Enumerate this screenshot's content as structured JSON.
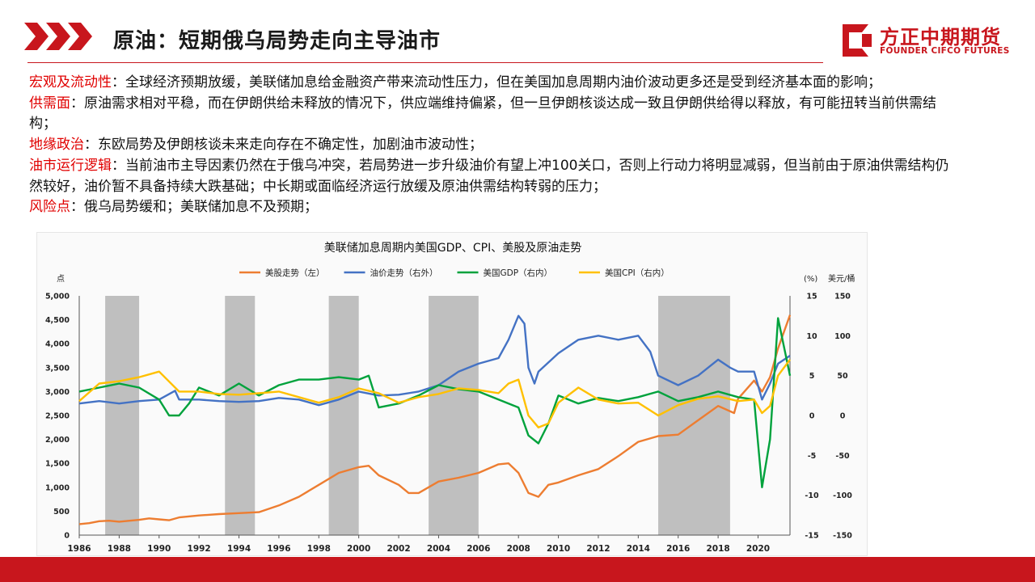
{
  "header": {
    "title": "原油：短期俄乌局势走向主导油市",
    "logo_name": "方正中期期货",
    "logo_en": "FOUNDER CIFCO FUTURES",
    "accent_color": "#c8161d"
  },
  "paragraphs": [
    {
      "key": "宏观及流动性",
      "text": "：全球经济预期放缓，美联储加息给金融资产带来流动性压力，但在美国加息周期内油价波动更多还是受到经济基本面的影响；"
    },
    {
      "key": "供需面",
      "text": "：原油需求相对平稳，而在伊朗供给未释放的情况下，供应端维持偏紧，但一旦伊朗核谈达成一致且伊朗供给得以释放，有可能扭转当前供需结构；"
    },
    {
      "key": "地缘政治",
      "text": "：东欧局势及伊朗核谈未来走向存在不确定性，加剧油市波动性；"
    },
    {
      "key": "油市运行逻辑",
      "text": "：当前油市主导因素仍然在于俄乌冲突，若局势进一步升级油价有望上冲100关口，否则上行动力将明显减弱，但当前由于原油供需结构仍然较好，油价暂不具备持续大跌基础；中长期或面临经济运行放缓及原油供需结构转弱的压力；"
    },
    {
      "key": "风险点",
      "text": "：俄乌局势缓和；美联储加息不及预期；"
    }
  ],
  "chart_data": {
    "type": "line",
    "title": "美联储加息周期内美国GDP、CPI、美股及原油走势",
    "left_unit": "点",
    "right_inner_unit": "(%)",
    "right_outer_unit": "美元/桶",
    "x_ticks": [
      "1986",
      "1988",
      "1990",
      "1992",
      "1994",
      "1996",
      "1998",
      "2000",
      "2002",
      "2004",
      "2006",
      "2008",
      "2010",
      "2012",
      "2014",
      "2016",
      "2018",
      "2020"
    ],
    "x_range": [
      1986,
      2021.6
    ],
    "y_left": {
      "range": [
        0,
        5000
      ],
      "ticks": [
        "0",
        "500",
        "1,000",
        "1,500",
        "2,000",
        "2,500",
        "3,000",
        "3,500",
        "4,000",
        "4,500",
        "5,000"
      ]
    },
    "y_right_inner": {
      "range": [
        -15,
        15
      ],
      "ticks": [
        "-15",
        "-10",
        "-5",
        "0",
        "5",
        "10",
        "15"
      ]
    },
    "y_right_outer": {
      "range": [
        -150,
        150
      ],
      "ticks": [
        "-150",
        "-100",
        "-50",
        "0",
        "50",
        "100",
        "150"
      ]
    },
    "shaded_periods": [
      [
        1987.3,
        1989.0
      ],
      [
        1993.3,
        1994.8
      ],
      [
        1998.5,
        2000.0
      ],
      [
        2003.5,
        2006.0
      ],
      [
        2015.0,
        2018.6
      ]
    ],
    "series": [
      {
        "name": "美股走势（左）",
        "color": "#ed7d31",
        "axis": "left",
        "points": [
          [
            1986,
            230
          ],
          [
            1986.5,
            250
          ],
          [
            1987,
            290
          ],
          [
            1987.5,
            300
          ],
          [
            1988,
            280
          ],
          [
            1989,
            320
          ],
          [
            1989.5,
            350
          ],
          [
            1990,
            330
          ],
          [
            1990.5,
            310
          ],
          [
            1991,
            370
          ],
          [
            1992,
            410
          ],
          [
            1993,
            440
          ],
          [
            1994,
            460
          ],
          [
            1995,
            480
          ],
          [
            1996,
            620
          ],
          [
            1997,
            800
          ],
          [
            1998,
            1050
          ],
          [
            1999,
            1300
          ],
          [
            2000,
            1420
          ],
          [
            2000.5,
            1450
          ],
          [
            2001,
            1250
          ],
          [
            2002,
            1050
          ],
          [
            2002.5,
            880
          ],
          [
            2003,
            880
          ],
          [
            2004,
            1120
          ],
          [
            2005,
            1200
          ],
          [
            2006,
            1300
          ],
          [
            2007,
            1480
          ],
          [
            2007.5,
            1500
          ],
          [
            2008,
            1300
          ],
          [
            2008.5,
            880
          ],
          [
            2009,
            800
          ],
          [
            2009.5,
            1050
          ],
          [
            2010,
            1100
          ],
          [
            2011,
            1250
          ],
          [
            2012,
            1380
          ],
          [
            2013,
            1650
          ],
          [
            2014,
            1950
          ],
          [
            2015,
            2070
          ],
          [
            2016,
            2100
          ],
          [
            2017,
            2400
          ],
          [
            2018,
            2700
          ],
          [
            2018.8,
            2550
          ],
          [
            2019,
            2850
          ],
          [
            2019.8,
            3230
          ],
          [
            2020.2,
            3000
          ],
          [
            2020.6,
            3300
          ],
          [
            2021,
            3900
          ],
          [
            2021.6,
            4600
          ]
        ]
      },
      {
        "name": "油价走势（右外）",
        "color": "#4472c4",
        "axis": "right_outer",
        "points": [
          [
            1986,
            15
          ],
          [
            1987,
            18
          ],
          [
            1988,
            15
          ],
          [
            1989,
            18
          ],
          [
            1990,
            20
          ],
          [
            1990.8,
            31
          ],
          [
            1991,
            20
          ],
          [
            1992,
            20
          ],
          [
            1993,
            18
          ],
          [
            1994,
            17
          ],
          [
            1995,
            18
          ],
          [
            1996,
            22
          ],
          [
            1997,
            20
          ],
          [
            1998,
            13
          ],
          [
            1999,
            20
          ],
          [
            2000,
            30
          ],
          [
            2001,
            25
          ],
          [
            2002,
            26
          ],
          [
            2003,
            30
          ],
          [
            2004,
            38
          ],
          [
            2005,
            55
          ],
          [
            2006,
            65
          ],
          [
            2007,
            72
          ],
          [
            2007.5,
            95
          ],
          [
            2008,
            125
          ],
          [
            2008.3,
            115
          ],
          [
            2008.5,
            60
          ],
          [
            2008.8,
            40
          ],
          [
            2009,
            55
          ],
          [
            2010,
            78
          ],
          [
            2011,
            95
          ],
          [
            2012,
            100
          ],
          [
            2013,
            95
          ],
          [
            2014,
            100
          ],
          [
            2014.6,
            80
          ],
          [
            2015,
            50
          ],
          [
            2016,
            38
          ],
          [
            2017,
            50
          ],
          [
            2018,
            70
          ],
          [
            2018.6,
            60
          ],
          [
            2019,
            55
          ],
          [
            2019.8,
            55
          ],
          [
            2020.2,
            20
          ],
          [
            2020.6,
            40
          ],
          [
            2021,
            65
          ],
          [
            2021.6,
            75
          ]
        ]
      },
      {
        "name": "美国GDP（右内）",
        "color": "#00a23c",
        "axis": "right_inner",
        "points": [
          [
            1986,
            3
          ],
          [
            1987,
            3.5
          ],
          [
            1988,
            4
          ],
          [
            1989,
            3.5
          ],
          [
            1990,
            2
          ],
          [
            1990.5,
            0
          ],
          [
            1991,
            0
          ],
          [
            1991.5,
            1.5
          ],
          [
            1992,
            3.5
          ],
          [
            1993,
            2.5
          ],
          [
            1994,
            4
          ],
          [
            1995,
            2.5
          ],
          [
            1996,
            3.8
          ],
          [
            1997,
            4.5
          ],
          [
            1998,
            4.5
          ],
          [
            1999,
            4.8
          ],
          [
            2000,
            4.5
          ],
          [
            2000.5,
            5
          ],
          [
            2001,
            1
          ],
          [
            2002,
            1.5
          ],
          [
            2003,
            2.5
          ],
          [
            2004,
            3.8
          ],
          [
            2005,
            3.3
          ],
          [
            2006,
            3
          ],
          [
            2007,
            2
          ],
          [
            2008,
            1
          ],
          [
            2008.5,
            -2.5
          ],
          [
            2009,
            -3.5
          ],
          [
            2009.5,
            -1
          ],
          [
            2010,
            2.5
          ],
          [
            2011,
            1.5
          ],
          [
            2012,
            2.2
          ],
          [
            2013,
            1.8
          ],
          [
            2014,
            2.3
          ],
          [
            2015,
            3
          ],
          [
            2016,
            1.8
          ],
          [
            2017,
            2.3
          ],
          [
            2018,
            3
          ],
          [
            2019,
            2.3
          ],
          [
            2019.8,
            2
          ],
          [
            2020.2,
            -9
          ],
          [
            2020.6,
            -3
          ],
          [
            2021,
            12.2
          ],
          [
            2021.6,
            5
          ]
        ]
      },
      {
        "name": "美国CPI（右内）",
        "color": "#ffc000",
        "axis": "right_inner",
        "points": [
          [
            1986,
            1.8
          ],
          [
            1987,
            4
          ],
          [
            1988,
            4.3
          ],
          [
            1989,
            4.8
          ],
          [
            1990,
            5.5
          ],
          [
            1991,
            3
          ],
          [
            1992,
            3
          ],
          [
            1993,
            2.7
          ],
          [
            1994,
            2.6
          ],
          [
            1995,
            2.8
          ],
          [
            1996,
            3
          ],
          [
            1997,
            2.3
          ],
          [
            1998,
            1.6
          ],
          [
            1999,
            2.3
          ],
          [
            2000,
            3.4
          ],
          [
            2001,
            2.8
          ],
          [
            2002,
            1.6
          ],
          [
            2003,
            2.3
          ],
          [
            2004,
            2.7
          ],
          [
            2005,
            3.4
          ],
          [
            2006,
            3.2
          ],
          [
            2007,
            2.8
          ],
          [
            2007.5,
            4
          ],
          [
            2008,
            4.5
          ],
          [
            2008.5,
            0
          ],
          [
            2009,
            -1.5
          ],
          [
            2009.5,
            -1
          ],
          [
            2010,
            1.6
          ],
          [
            2011,
            3.5
          ],
          [
            2012,
            2
          ],
          [
            2013,
            1.5
          ],
          [
            2014,
            1.6
          ],
          [
            2015,
            0
          ],
          [
            2016,
            1.3
          ],
          [
            2017,
            2.1
          ],
          [
            2018,
            2.4
          ],
          [
            2019,
            1.8
          ],
          [
            2019.8,
            2
          ],
          [
            2020.2,
            0.3
          ],
          [
            2020.6,
            1.2
          ],
          [
            2021,
            5
          ],
          [
            2021.6,
            7
          ]
        ]
      }
    ]
  }
}
